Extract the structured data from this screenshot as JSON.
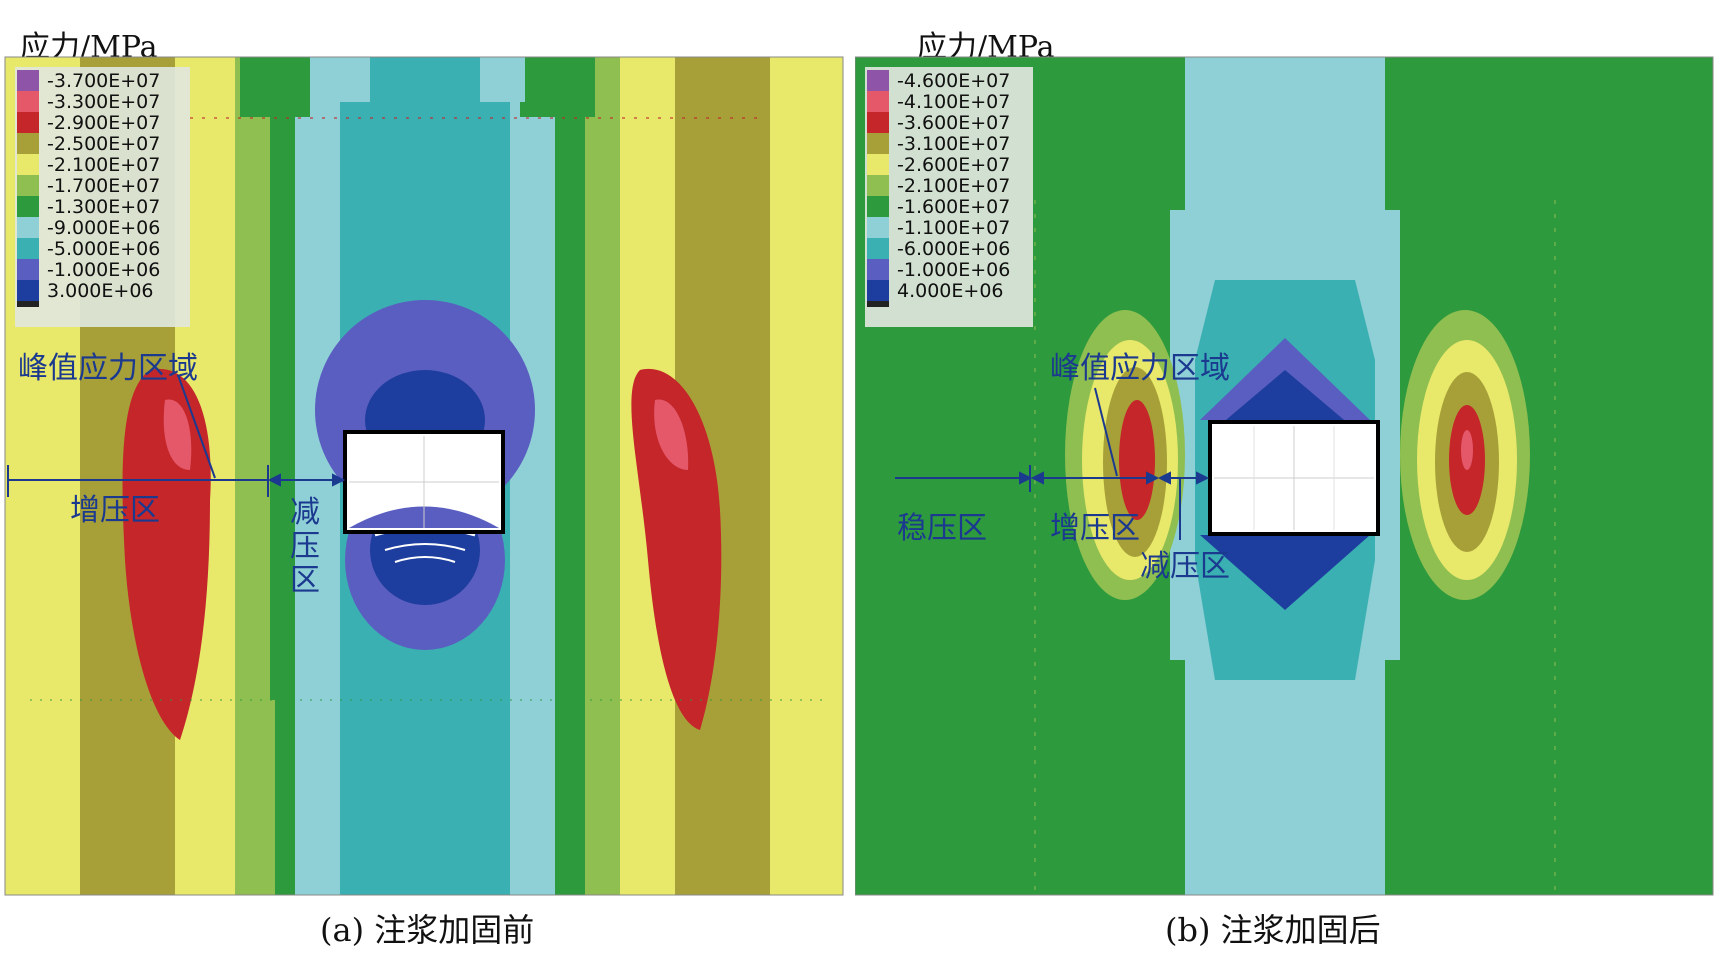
{
  "colors": {
    "annotation": "#1b3a8f",
    "cavity_border": "#000000"
  },
  "panels": [
    {
      "id": "a",
      "unit_label": "应力/MPa",
      "caption": "(a) 注浆加固前",
      "legend": [
        {
          "label": "-3.700E+07",
          "color": "#8e54a8"
        },
        {
          "label": "-3.300E+07",
          "color": "#e4586a"
        },
        {
          "label": "-2.900E+07",
          "color": "#c4262a"
        },
        {
          "label": "-2.500E+07",
          "color": "#a7a038"
        },
        {
          "label": "-2.100E+07",
          "color": "#e8e86a"
        },
        {
          "label": "-1.700E+07",
          "color": "#8fbf50"
        },
        {
          "label": "-1.300E+07",
          "color": "#2e9a3e"
        },
        {
          "label": "-9.000E+06",
          "color": "#8fcfd6"
        },
        {
          "label": "-5.000E+06",
          "color": "#3ab0b2"
        },
        {
          "label": "-1.000E+06",
          "color": "#5a5ec0"
        },
        {
          "label": "3.000E+06",
          "color": "#1d3e9e"
        },
        {
          "label": "",
          "color": "#222222"
        }
      ],
      "annotations": {
        "peak": "峰值应力区域",
        "increase": "增压区",
        "decrease_1": "减",
        "decrease_2": "压",
        "decrease_3": "区"
      }
    },
    {
      "id": "b",
      "unit_label": "应力/MPa",
      "caption": "(b) 注浆加固后",
      "legend": [
        {
          "label": "-4.600E+07",
          "color": "#8e54a8"
        },
        {
          "label": "-4.100E+07",
          "color": "#e4586a"
        },
        {
          "label": "-3.600E+07",
          "color": "#c4262a"
        },
        {
          "label": "-3.100E+07",
          "color": "#a7a038"
        },
        {
          "label": "-2.600E+07",
          "color": "#e8e86a"
        },
        {
          "label": "-2.100E+07",
          "color": "#8fbf50"
        },
        {
          "label": "-1.600E+07",
          "color": "#2e9a3e"
        },
        {
          "label": "-1.100E+07",
          "color": "#8fcfd6"
        },
        {
          "label": "-6.000E+06",
          "color": "#3ab0b2"
        },
        {
          "label": "-1.000E+06",
          "color": "#5a5ec0"
        },
        {
          "label": "4.000E+06",
          "color": "#1d3e9e"
        },
        {
          "label": "",
          "color": "#222222"
        }
      ],
      "annotations": {
        "peak": "峰值应力区域",
        "stable": "稳压区",
        "increase": "增压区",
        "decrease": "减压区"
      }
    }
  ]
}
